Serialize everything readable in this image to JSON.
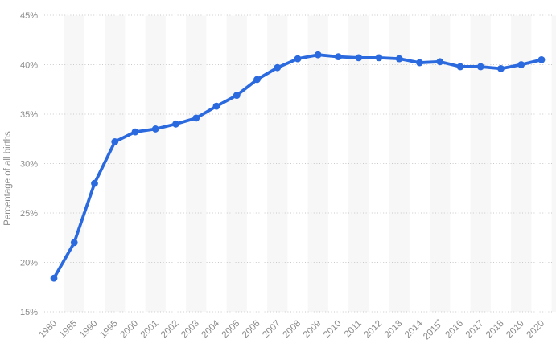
{
  "chart_data": {
    "type": "line",
    "title": "",
    "xlabel": "",
    "ylabel": "Percentage of all births",
    "categories": [
      "1980",
      "1985",
      "1990",
      "1995",
      "2000",
      "2001",
      "2002",
      "2003",
      "2004",
      "2005",
      "2006",
      "2007",
      "2008",
      "2009",
      "2010",
      "2011",
      "2012",
      "2013",
      "2014",
      "2015*",
      "2016",
      "2017",
      "2018",
      "2019",
      "2020"
    ],
    "values": [
      18.4,
      22.0,
      28.0,
      32.2,
      33.2,
      33.5,
      34.0,
      34.6,
      35.8,
      36.9,
      38.5,
      39.7,
      40.6,
      41.0,
      40.8,
      40.7,
      40.7,
      40.6,
      40.2,
      40.3,
      39.8,
      39.8,
      39.6,
      40.0,
      40.5
    ],
    "ylim": [
      15,
      45
    ],
    "y_tick_step": 5,
    "y_tick_suffix": "%",
    "grid": "horizontal-dotted",
    "legend_position": "none",
    "colors": {
      "line": "#2b69df",
      "marker": "#2b69df",
      "column_stripe": "#f7f7f7",
      "gridline": "#c9c9c9",
      "tick_label": "#8a8a8a",
      "axis_title": "#8a8a8a",
      "background": "#ffffff"
    }
  }
}
